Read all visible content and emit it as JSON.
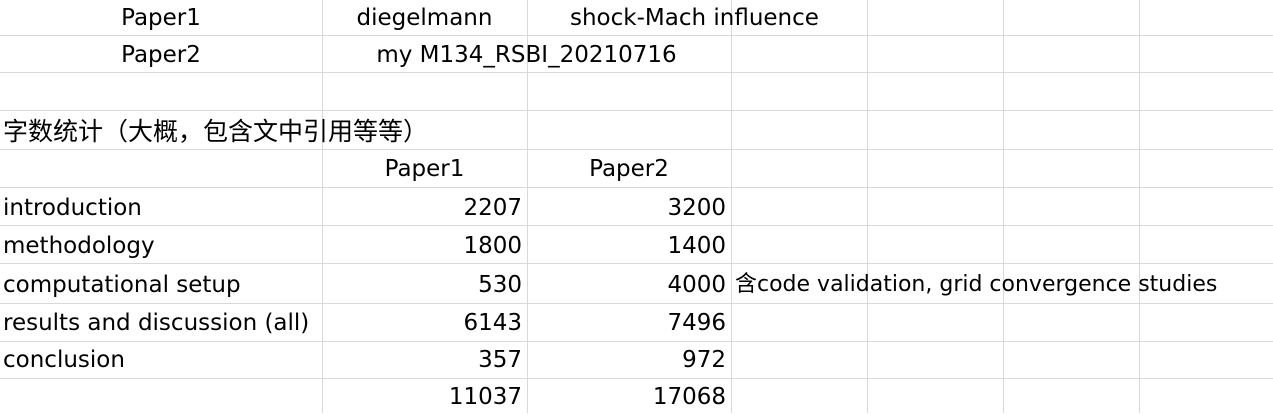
{
  "rows": {
    "r1": {
      "label": "Paper1",
      "author": "diegelmann",
      "topic": "shock-Mach influence"
    },
    "r2": {
      "label": "Paper2",
      "value": "my M134_RSBI_20210716"
    },
    "section_title": "字数统计（大概，包含文中引用等等）",
    "table": {
      "headers": [
        "Paper1",
        "Paper2"
      ],
      "items": [
        {
          "name": "introduction",
          "p1": "2207",
          "p2": "3200",
          "note": ""
        },
        {
          "name": "methodology",
          "p1": "1800",
          "p2": "1400",
          "note": ""
        },
        {
          "name": "computational setup",
          "p1": "530",
          "p2": "4000",
          "note": "含code validation, grid convergence studies"
        },
        {
          "name": "results and discussion (all)",
          "p1": "6143",
          "p2": "7496",
          "note": ""
        },
        {
          "name": "conclusion",
          "p1": "357",
          "p2": "972",
          "note": ""
        }
      ],
      "totals": {
        "p1": "11037",
        "p2": "17068"
      }
    }
  }
}
